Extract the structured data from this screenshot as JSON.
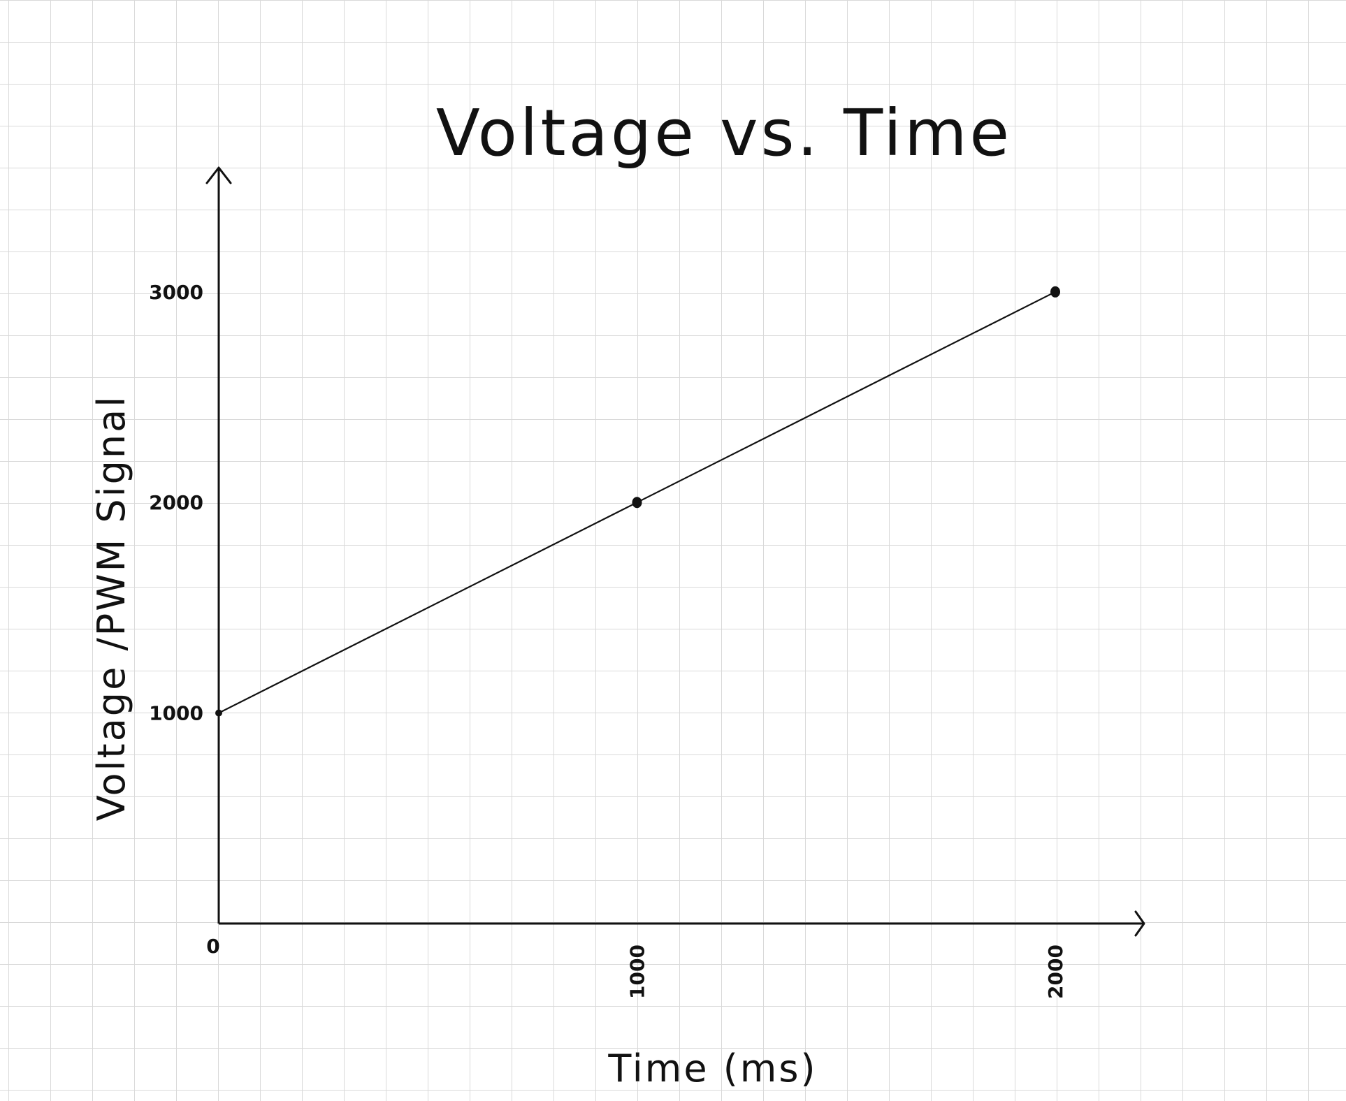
{
  "chart_data": {
    "type": "line",
    "title": "Voltage vs. Time",
    "xlabel": "Time (ms)",
    "ylabel": "Voltage /PWM Signal",
    "x": [
      0,
      1000,
      2000
    ],
    "series": [
      {
        "values": [
          1000,
          2000,
          3000
        ]
      }
    ],
    "xticks": [
      "0",
      "1000",
      "2000"
    ],
    "yticks": [
      "1000",
      "2000",
      "3000"
    ],
    "xlim": [
      0,
      2200
    ],
    "ylim": [
      0,
      3600
    ],
    "grid": true,
    "colors": {
      "ink": "#111111",
      "grid": "#d9d9d9"
    }
  }
}
